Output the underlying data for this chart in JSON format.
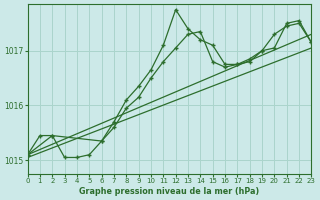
{
  "background_color": "#cce9e8",
  "grid_color": "#aad4cc",
  "line_color": "#2d6e2d",
  "title": "Graphe pression niveau de la mer (hPa)",
  "xlim": [
    0,
    23
  ],
  "ylim": [
    1014.75,
    1017.85
  ],
  "yticks": [
    1015,
    1016,
    1017
  ],
  "xticks": [
    0,
    1,
    2,
    3,
    4,
    5,
    6,
    7,
    8,
    9,
    10,
    11,
    12,
    13,
    14,
    15,
    16,
    17,
    18,
    19,
    20,
    21,
    22,
    23
  ],
  "series": [
    {
      "x": [
        0,
        23
      ],
      "y": [
        1015.05,
        1017.05
      ],
      "has_markers": false
    },
    {
      "x": [
        0,
        23
      ],
      "y": [
        1015.1,
        1017.3
      ],
      "has_markers": false
    },
    {
      "x": [
        0,
        1,
        2,
        3,
        4,
        5,
        6,
        7,
        8,
        9,
        10,
        11,
        12,
        13,
        14,
        15,
        16,
        17,
        18,
        19,
        20,
        21,
        22,
        23
      ],
      "y": [
        1015.1,
        1015.45,
        1015.45,
        1015.05,
        1015.05,
        1015.1,
        1015.35,
        1015.6,
        1015.95,
        1016.15,
        1016.5,
        1016.8,
        1017.05,
        1017.3,
        1017.35,
        1016.8,
        1016.7,
        1016.75,
        1016.8,
        1017.0,
        1017.3,
        1017.45,
        1017.5,
        1017.15
      ],
      "has_markers": true
    },
    {
      "x": [
        0,
        2,
        6,
        7,
        8,
        9,
        10,
        11,
        12,
        13,
        14,
        15,
        16,
        17,
        18,
        19,
        20,
        21,
        22,
        23
      ],
      "y": [
        1015.1,
        1015.45,
        1015.35,
        1015.7,
        1016.1,
        1016.35,
        1016.65,
        1017.1,
        1017.75,
        1017.4,
        1017.2,
        1017.1,
        1016.75,
        1016.75,
        1016.85,
        1017.0,
        1017.05,
        1017.5,
        1017.55,
        1017.15
      ],
      "has_markers": true
    }
  ]
}
